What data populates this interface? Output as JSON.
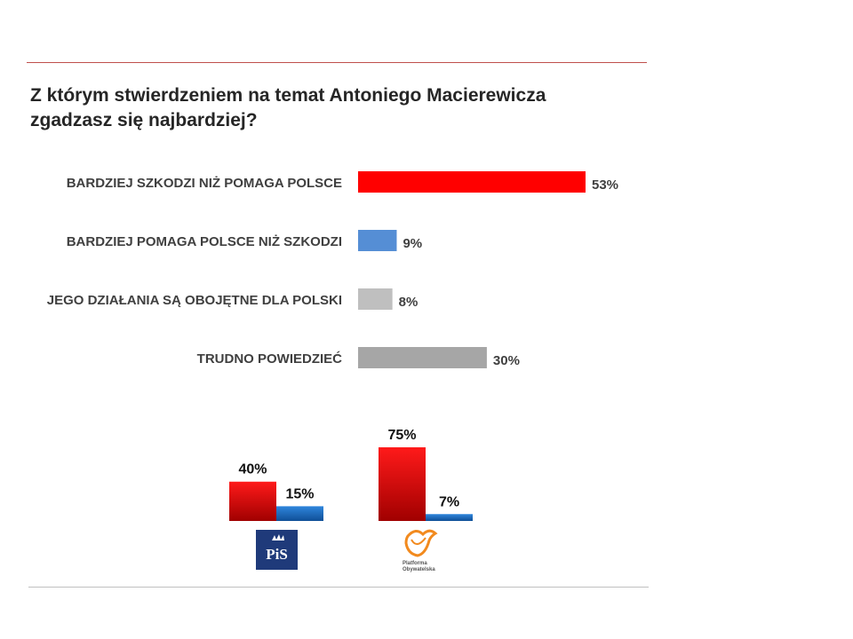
{
  "title_line1": "Z którym stwierdzeniem na temat Antoniego Macierewicza",
  "title_line2": "zgadzasz się najbardziej?",
  "chart_data": [
    {
      "type": "bar",
      "orientation": "horizontal",
      "title": "Z którym stwierdzeniem na temat Antoniego Macierewicza zgadzasz się najbardziej?",
      "categories": [
        "BARDZIEJ SZKODZI NIŻ POMAGA POLSCE",
        "BARDZIEJ POMAGA POLSCE NIŻ SZKODZI",
        "JEGO DZIAŁANIA SĄ OBOJĘTNE DLA POLSKI",
        "TRUDNO POWIEDZIEĆ"
      ],
      "values": [
        53,
        9,
        8,
        30
      ],
      "labels": [
        "53%",
        "9%",
        "8%",
        "30%"
      ],
      "colors": [
        "#ff0000",
        "#558ed5",
        "#bfbfbf",
        "#a6a6a6"
      ],
      "xlim": [
        0,
        53
      ]
    },
    {
      "type": "bar",
      "orientation": "vertical",
      "groups": [
        "PiS",
        "Platforma Obywatelska"
      ],
      "series": [
        {
          "name": "BARDZIEJ SZKODZI NIŻ POMAGA POLSCE",
          "values": [
            40,
            75
          ],
          "labels": [
            "40%",
            "75%"
          ],
          "color": "#e00000"
        },
        {
          "name": "BARDZIEJ POMAGA POLSCE NIŻ SZKODZI",
          "values": [
            15,
            7
          ],
          "labels": [
            "15%",
            "7%"
          ],
          "color": "#1f6fc5"
        }
      ],
      "ylim": [
        0,
        75
      ]
    }
  ],
  "logos": {
    "pis": {
      "text": "PiS",
      "color": "#1f3a7a"
    },
    "po": {
      "line1": "Platforma",
      "line2": "Obywatelska",
      "color": "#f28a1e"
    }
  }
}
